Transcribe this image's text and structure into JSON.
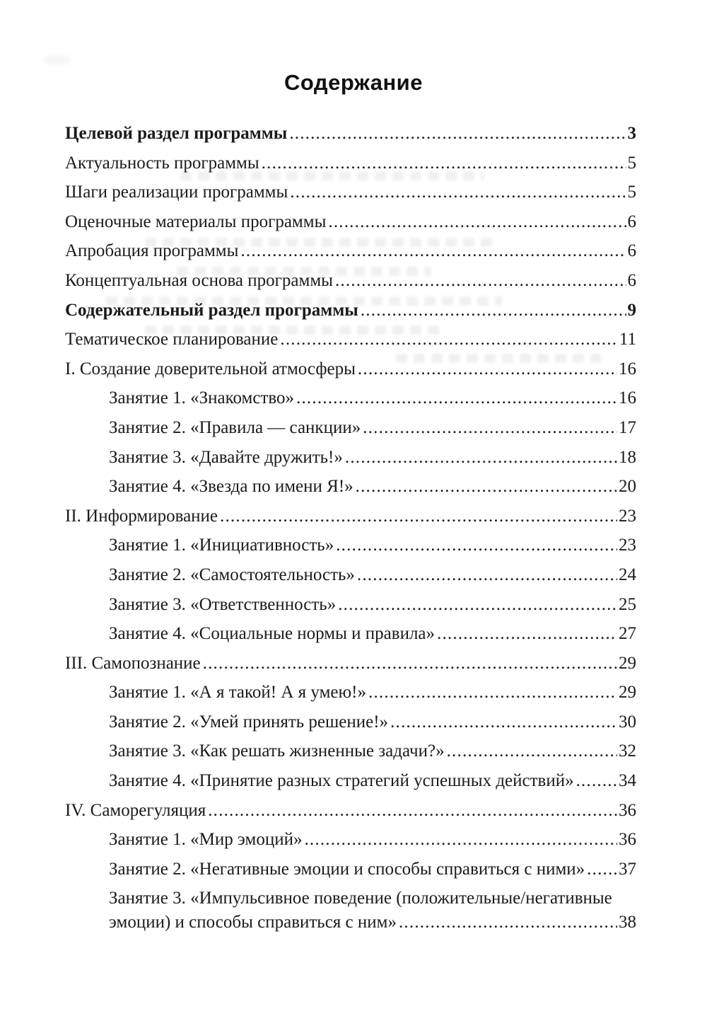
{
  "page": {
    "title": "Содержание"
  },
  "toc": {
    "entries": [
      {
        "label": "Целевой раздел программы",
        "page": "3",
        "bold": true,
        "indent": false
      },
      {
        "label": "Актуальность программы",
        "page": "5",
        "bold": false,
        "indent": false
      },
      {
        "label": "Шаги реализации программы",
        "page": "5",
        "bold": false,
        "indent": false
      },
      {
        "label": "Оценочные материалы программы",
        "page": "6",
        "bold": false,
        "indent": false
      },
      {
        "label": "Апробация программы",
        "page": "6",
        "bold": false,
        "indent": false
      },
      {
        "label": "Концептуальная основа программы",
        "page": "6",
        "bold": false,
        "indent": false
      },
      {
        "label": "Содержательный раздел программы",
        "page": "9",
        "bold": true,
        "indent": false
      },
      {
        "label": "Тематическое планирование",
        "page": "11",
        "bold": false,
        "indent": false
      },
      {
        "label": "I. Создание доверительной атмосферы",
        "page": "16",
        "bold": false,
        "indent": false
      },
      {
        "label": "Занятие 1. «Знакомство»",
        "page": "16",
        "bold": false,
        "indent": true
      },
      {
        "label": "Занятие 2. «Правила — санкции»",
        "page": "17",
        "bold": false,
        "indent": true
      },
      {
        "label": "Занятие 3. «Давайте дружить!»",
        "page": "18",
        "bold": false,
        "indent": true
      },
      {
        "label": "Занятие 4. «Звезда по имени Я!»",
        "page": "20",
        "bold": false,
        "indent": true
      },
      {
        "label": "II. Информирование",
        "page": "23",
        "bold": false,
        "indent": false
      },
      {
        "label": "Занятие 1. «Инициативность»",
        "page": "23",
        "bold": false,
        "indent": true
      },
      {
        "label": "Занятие 2. «Самостоятельность»",
        "page": "24",
        "bold": false,
        "indent": true
      },
      {
        "label": "Занятие 3. «Ответственность»",
        "page": "25",
        "bold": false,
        "indent": true
      },
      {
        "label": "Занятие 4. «Социальные нормы и правила»",
        "page": "27",
        "bold": false,
        "indent": true
      },
      {
        "label": "III. Самопознание",
        "page": "29",
        "bold": false,
        "indent": false
      },
      {
        "label": "Занятие 1. «А я такой! А я умею!»",
        "page": "29",
        "bold": false,
        "indent": true
      },
      {
        "label": "Занятие 2. «Умей принять решение!»",
        "page": "30",
        "bold": false,
        "indent": true
      },
      {
        "label": "Занятие 3. «Как решать жизненные задачи?»",
        "page": "32",
        "bold": false,
        "indent": true
      },
      {
        "label": "Занятие 4. «Принятие разных стратегий успешных действий»",
        "page": "34",
        "bold": false,
        "indent": true
      },
      {
        "label": "IV. Саморегуляция",
        "page": "36",
        "bold": false,
        "indent": false
      },
      {
        "label": "Занятие 1. «Мир эмоций»",
        "page": "36",
        "bold": false,
        "indent": true
      },
      {
        "label": "Занятие 2. «Негативные эмоции и способы справиться с ними»",
        "page": "37",
        "bold": false,
        "indent": true
      },
      {
        "label": "Занятие 3. «Импульсивное поведение (положительные/негативные",
        "label2": "эмоции) и способы справиться с ним»",
        "page": "38",
        "bold": false,
        "indent": true
      }
    ]
  }
}
